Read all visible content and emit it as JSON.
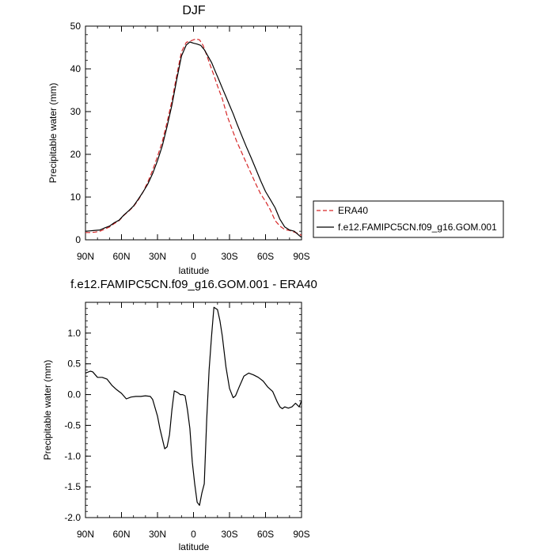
{
  "chart_data": [
    {
      "type": "line",
      "title": "DJF",
      "xlabel": "latitude",
      "ylabel": "Precipitable water (mm)",
      "xlim": [
        90,
        -90
      ],
      "ylim": [
        0,
        50
      ],
      "x_ticks": [
        90,
        60,
        30,
        0,
        -30,
        -60,
        -90
      ],
      "x_tick_labels": [
        "90N",
        "60N",
        "30N",
        "0",
        "30S",
        "60S",
        "90S"
      ],
      "y_ticks": [
        0,
        10,
        20,
        30,
        40,
        50
      ],
      "y_tick_labels": [
        "0",
        "10",
        "20",
        "30",
        "40",
        "50"
      ],
      "grid": false,
      "legend": "right",
      "series": [
        {
          "name": "ERA40",
          "color": "#d62728",
          "style": "dashed",
          "x": [
            90,
            86,
            82,
            78,
            74,
            70,
            66,
            62,
            58,
            54,
            50,
            46,
            42,
            38,
            34,
            30,
            26,
            22,
            18,
            14,
            10,
            6,
            2,
            0,
            -2,
            -5,
            -8,
            -11,
            -14,
            -17,
            -20,
            -24,
            -28,
            -32,
            -36,
            -40,
            -44,
            -48,
            -52,
            -56,
            -60,
            -64,
            -68,
            -72,
            -76,
            -80,
            -84,
            -88,
            -90
          ],
          "y": [
            1.7,
            1.7,
            1.8,
            2.0,
            2.5,
            3.0,
            3.8,
            4.5,
            5.7,
            6.7,
            7.8,
            9.3,
            11.2,
            13.6,
            16.3,
            19.5,
            23.0,
            27.5,
            32.5,
            38.5,
            44.0,
            46.2,
            46.6,
            46.8,
            47.0,
            46.8,
            45.5,
            43.2,
            40.8,
            38.5,
            36.0,
            33.0,
            29.0,
            26.0,
            23.0,
            20.5,
            18.0,
            15.5,
            13.0,
            10.7,
            9.0,
            7.0,
            4.5,
            3.2,
            2.4,
            2.2,
            1.8,
            1.4,
            1.0
          ]
        },
        {
          "name": "f.e12.FAMIPC5CN.f09_g16.GOM.001",
          "color": "#000000",
          "style": "solid",
          "x": [
            90,
            86,
            82,
            78,
            74,
            70,
            66,
            62,
            58,
            54,
            50,
            46,
            42,
            38,
            34,
            30,
            26,
            22,
            18,
            14,
            10,
            6,
            3,
            0,
            -3,
            -6,
            -9,
            -12,
            -15,
            -18,
            -21,
            -24,
            -27,
            -30,
            -33,
            -36,
            -40,
            -44,
            -48,
            -52,
            -56,
            -60,
            -64,
            -68,
            -72,
            -76,
            -80,
            -84,
            -88,
            -90
          ],
          "y": [
            2.0,
            2.1,
            2.2,
            2.3,
            2.8,
            3.2,
            4.0,
            4.6,
            5.8,
            6.8,
            7.9,
            9.5,
            11.2,
            13.1,
            15.5,
            18.5,
            22.0,
            26.5,
            31.5,
            37.5,
            43.0,
            45.6,
            46.3,
            46.0,
            45.8,
            45.5,
            44.5,
            43.0,
            41.5,
            39.5,
            37.5,
            35.5,
            33.5,
            31.5,
            29.5,
            27.3,
            24.5,
            21.8,
            19.2,
            16.5,
            13.8,
            11.3,
            9.4,
            7.5,
            4.8,
            3.0,
            2.3,
            2.0,
            1.0,
            0.6
          ]
        }
      ]
    },
    {
      "type": "line",
      "title": "f.e12.FAMIPC5CN.f09_g16.GOM.001 - ERA40",
      "xlabel": "latitude",
      "ylabel": "Precipitable water (mm)",
      "xlim": [
        90,
        -90
      ],
      "ylim": [
        -2.0,
        1.5
      ],
      "x_ticks": [
        90,
        60,
        30,
        0,
        -30,
        -60,
        -90
      ],
      "x_tick_labels": [
        "90N",
        "60N",
        "30N",
        "0",
        "30S",
        "60S",
        "90S"
      ],
      "y_ticks": [
        -2.0,
        -1.5,
        -1.0,
        -0.5,
        0.0,
        0.5,
        1.0
      ],
      "y_tick_labels": [
        "-2.0",
        "-1.5",
        "-1.0",
        "-0.5",
        "0.0",
        "0.5",
        "1.0"
      ],
      "grid": false,
      "series": [
        {
          "color": "#000000",
          "style": "solid",
          "x": [
            90,
            86,
            84,
            80,
            76,
            72,
            68,
            64,
            60,
            56,
            52,
            48,
            44,
            40,
            36,
            34,
            30,
            28,
            24,
            22,
            20,
            18,
            16,
            13,
            11,
            9,
            7,
            5,
            3,
            1,
            -1,
            -3,
            -5,
            -7,
            -9,
            -11,
            -13,
            -15,
            -17,
            -20,
            -22,
            -24,
            -27,
            -30,
            -33,
            -35,
            -38,
            -42,
            -46,
            -50,
            -54,
            -58,
            -62,
            -66,
            -70,
            -72,
            -74,
            -76,
            -79,
            -82,
            -85,
            -88,
            -90
          ],
          "y": [
            0.35,
            0.38,
            0.37,
            0.28,
            0.28,
            0.25,
            0.15,
            0.08,
            0.02,
            -0.07,
            -0.04,
            -0.03,
            -0.03,
            -0.02,
            -0.03,
            -0.08,
            -0.35,
            -0.55,
            -0.88,
            -0.85,
            -0.65,
            -0.25,
            0.06,
            0.03,
            0.0,
            0.0,
            -0.02,
            -0.25,
            -0.55,
            -1.1,
            -1.45,
            -1.75,
            -1.8,
            -1.6,
            -1.45,
            -0.4,
            0.4,
            0.95,
            1.42,
            1.38,
            1.2,
            0.95,
            0.45,
            0.1,
            -0.05,
            -0.02,
            0.12,
            0.3,
            0.35,
            0.32,
            0.28,
            0.22,
            0.12,
            0.05,
            -0.13,
            -0.2,
            -0.23,
            -0.2,
            -0.22,
            -0.2,
            -0.14,
            -0.2,
            -0.1
          ]
        }
      ]
    }
  ]
}
